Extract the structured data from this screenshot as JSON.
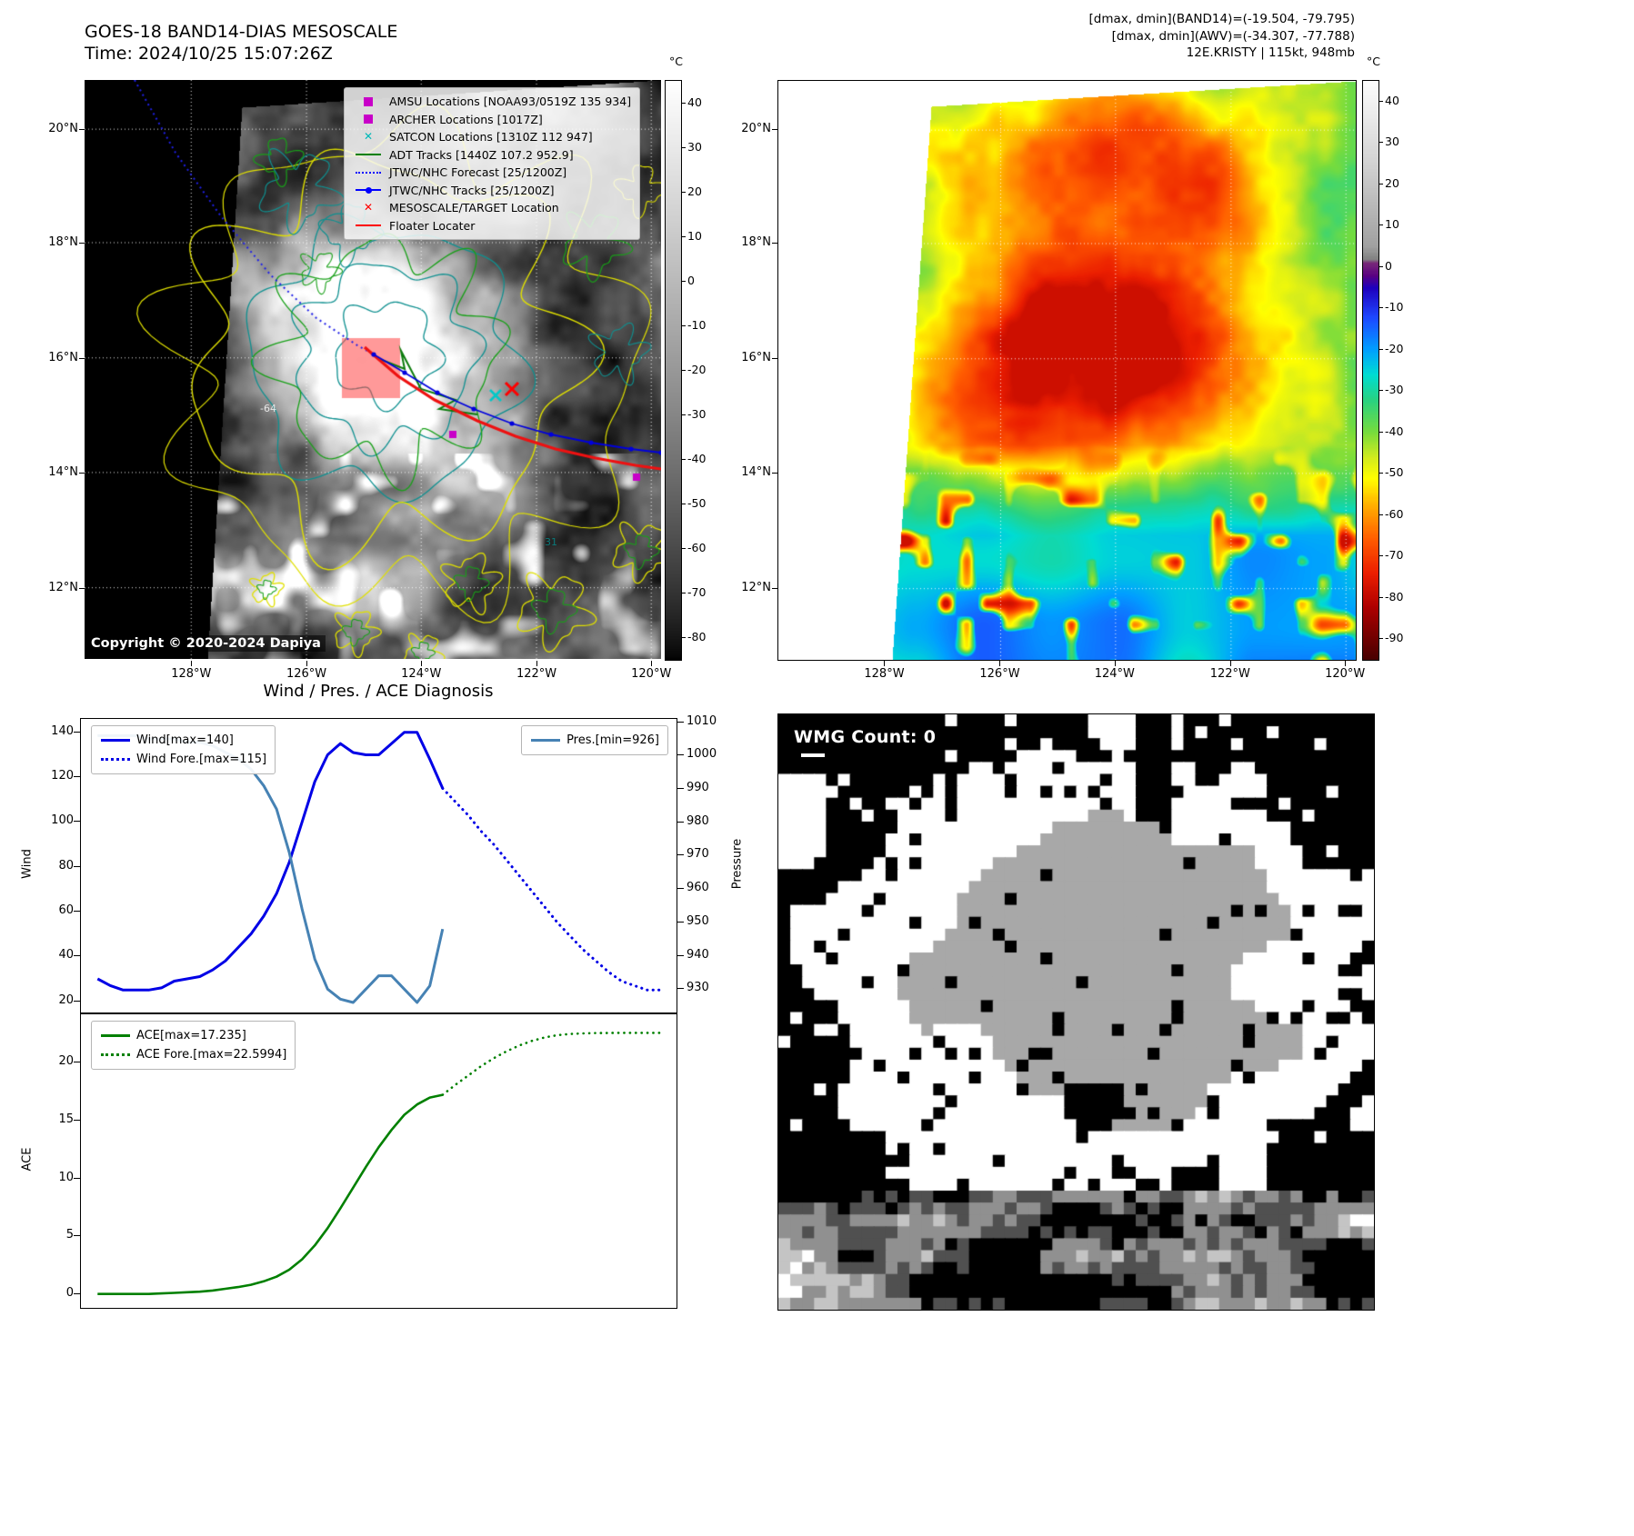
{
  "chart_data": [
    {
      "type": "line",
      "title": "Wind / Pres. / ACE Diagnosis",
      "xlim": [
        -1.3,
        45.3
      ],
      "x_obs": [
        0,
        1,
        2,
        3,
        4,
        5,
        6,
        7,
        8,
        9,
        10,
        11,
        12,
        13,
        14,
        15,
        16,
        17,
        18,
        19,
        20,
        21,
        22,
        23,
        24,
        25,
        26,
        27
      ],
      "x_fore": [
        27,
        28,
        29,
        30,
        31,
        32,
        33,
        34,
        35,
        36,
        37,
        38,
        39,
        40,
        41,
        42,
        43,
        44
      ],
      "left_axis": {
        "label": "Wind",
        "ticks": [
          20,
          40,
          60,
          80,
          100,
          120,
          140
        ],
        "ylim": [
          15,
          146
        ]
      },
      "right_axis": {
        "label": "Pressure",
        "ticks": [
          930,
          940,
          950,
          960,
          970,
          980,
          990,
          1000,
          1010
        ],
        "ylim": [
          923,
          1011
        ]
      },
      "grid": false,
      "legend_position": "upper left / upper right",
      "series": [
        {
          "name": "Wind[max=140]",
          "axis": "left",
          "color": "#0000e6",
          "style": "solid",
          "width": 3,
          "x_ref": "x_obs",
          "values": [
            30,
            27,
            25,
            25,
            25,
            26,
            29,
            30,
            31,
            34,
            38,
            44,
            50,
            58,
            68,
            82,
            100,
            118,
            130,
            135,
            131,
            130,
            130,
            135,
            140,
            140,
            128,
            115
          ]
        },
        {
          "name": "Wind Fore.[max=115]",
          "axis": "left",
          "color": "#0000e6",
          "style": "dotted",
          "width": 3,
          "x_ref": "x_fore",
          "values": [
            115,
            109,
            103,
            96,
            90,
            83,
            76,
            69,
            62,
            55,
            49,
            43,
            38,
            33,
            29,
            27,
            25,
            25
          ]
        },
        {
          "name": "Pres.[min=926]",
          "axis": "right",
          "color": "#4682b4",
          "style": "solid",
          "width": 3,
          "x_ref": "x_obs",
          "values": [
            1006,
            1006,
            1006,
            1006,
            1005,
            1005,
            1005,
            1004,
            1004,
            1003,
            1001,
            999,
            996,
            991,
            984,
            971,
            954,
            939,
            930,
            927,
            926,
            930,
            934,
            934,
            930,
            926,
            931,
            948
          ]
        }
      ]
    },
    {
      "type": "line",
      "title": "",
      "xlim": [
        -1.3,
        45.3
      ],
      "x_obs": [
        0,
        1,
        2,
        3,
        4,
        5,
        6,
        7,
        8,
        9,
        10,
        11,
        12,
        13,
        14,
        15,
        16,
        17,
        18,
        19,
        20,
        21,
        22,
        23,
        24,
        25,
        26,
        27
      ],
      "x_fore": [
        27,
        28,
        29,
        30,
        31,
        32,
        33,
        34,
        35,
        36,
        37,
        38,
        39,
        40,
        41,
        42,
        43,
        44
      ],
      "left_axis": {
        "label": "ACE",
        "ticks": [
          0,
          5,
          10,
          15,
          20
        ],
        "ylim": [
          -1.2,
          24.2
        ]
      },
      "grid": false,
      "legend_position": "upper left",
      "series": [
        {
          "name": "ACE[max=17.235]",
          "axis": "left",
          "color": "#008000",
          "style": "solid",
          "width": 2.6,
          "x_ref": "x_obs",
          "values": [
            0,
            0,
            0,
            0,
            0,
            0.05,
            0.1,
            0.15,
            0.2,
            0.3,
            0.45,
            0.6,
            0.8,
            1.1,
            1.5,
            2.1,
            3,
            4.2,
            5.7,
            7.4,
            9.2,
            11,
            12.7,
            14.2,
            15.5,
            16.4,
            17,
            17.235
          ]
        },
        {
          "name": "ACE Fore.[max=22.5994]",
          "axis": "left",
          "color": "#008000",
          "style": "dotted",
          "width": 2.6,
          "x_ref": "x_fore",
          "values": [
            17.235,
            18.1,
            18.9,
            19.7,
            20.4,
            21,
            21.5,
            21.9,
            22.2,
            22.4,
            22.5,
            22.55,
            22.58,
            22.59,
            22.5994,
            22.5994,
            22.5994,
            22.5994
          ]
        }
      ]
    }
  ],
  "goes_panel": {
    "title": "GOES-18 BAND14-DIAS MESOSCALE",
    "time_line": "Time: 2024/10/25 15:07:26Z",
    "copyright": "Copyright © 2020-2024 Dapiya",
    "legend": [
      {
        "marker": "square",
        "color": "#c800c8",
        "label": "AMSU Locations [NOAA93/0519Z 135 934]"
      },
      {
        "marker": "square",
        "color": "#c800c8",
        "label": "ARCHER Locations [1017Z]"
      },
      {
        "marker": "x",
        "color": "#00b8b8",
        "label": "SATCON Locations [1310Z 112 947]"
      },
      {
        "marker": "line",
        "color": "#008000",
        "label": "ADT Tracks [1440Z 107.2 952.9]"
      },
      {
        "marker": "dotted",
        "color": "#0000ff",
        "label": "JTWC/NHC Forecast [25/1200Z]"
      },
      {
        "marker": "line-dot",
        "color": "#0000ff",
        "label": "JTWC/NHC Tracks [25/1200Z]"
      },
      {
        "marker": "x",
        "color": "#ff0000",
        "label": "MESOSCALE/TARGET Location"
      },
      {
        "marker": "line",
        "color": "#ff0000",
        "label": "Floater Locater"
      }
    ],
    "lat_ticks": [
      "20°N",
      "18°N",
      "16°N",
      "14°N",
      "12°N"
    ],
    "lon_ticks": [
      "128°W",
      "126°W",
      "124°W",
      "122°W",
      "120°W"
    ],
    "colorbar_unit": "°C",
    "colorbar_ticks": [
      40,
      30,
      20,
      10,
      0,
      -10,
      -20,
      -30,
      -40,
      -50,
      -60,
      -70,
      -80
    ],
    "annotations": [
      {
        "text": "-64"
      },
      {
        "text": "31"
      }
    ]
  },
  "awv_panel": {
    "header_lines": [
      "[dmax, dmin](BAND14)=(-19.504, -79.795)",
      "[dmax, dmin](AWV)=(-34.307, -77.788)",
      "12E.KRISTY | 115kt, 948mb"
    ],
    "lat_ticks": [
      "20°N",
      "18°N",
      "16°N",
      "14°N",
      "12°N"
    ],
    "lon_ticks": [
      "128°W",
      "126°W",
      "124°W",
      "122°W",
      "120°W"
    ],
    "colorbar_unit": "°C",
    "colorbar_ticks": [
      40,
      30,
      20,
      10,
      0,
      -10,
      -20,
      -30,
      -40,
      -50,
      -60,
      -70,
      -80,
      -90
    ]
  },
  "wmg_panel": {
    "count_label": "WMG Count: 0"
  }
}
